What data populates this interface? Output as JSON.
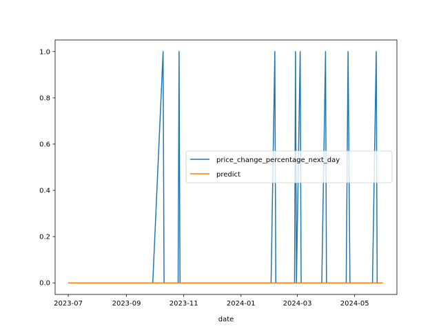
{
  "chart_data": {
    "type": "line",
    "xlabel": "date",
    "ylabel": "",
    "xlim": [
      "2023-06-17",
      "2024-06-15"
    ],
    "ylim": [
      -0.05,
      1.05
    ],
    "grid": false,
    "legend_position": "center-right",
    "x_ticks": [
      "2023-07",
      "2023-09",
      "2023-11",
      "2024-01",
      "2024-03",
      "2024-05"
    ],
    "y_ticks": [
      "0.0",
      "0.2",
      "0.4",
      "0.6",
      "0.8",
      "1.0"
    ],
    "series": [
      {
        "name": "price_change_percentage_next_day",
        "color": "#1f77b4",
        "points": [
          [
            "2023-07-01",
            0
          ],
          [
            "2023-09-29",
            0
          ],
          [
            "2023-10-10",
            1
          ],
          [
            "2023-10-11",
            0
          ],
          [
            "2023-10-26",
            0
          ],
          [
            "2023-10-27",
            1
          ],
          [
            "2023-10-28",
            0
          ],
          [
            "2024-02-02",
            0
          ],
          [
            "2024-02-06",
            1
          ],
          [
            "2024-02-07",
            0
          ],
          [
            "2024-02-27",
            0
          ],
          [
            "2024-02-28",
            1
          ],
          [
            "2024-02-29",
            0
          ],
          [
            "2024-03-04",
            1
          ],
          [
            "2024-03-05",
            0
          ],
          [
            "2024-03-27",
            0
          ],
          [
            "2024-03-31",
            1
          ],
          [
            "2024-04-01",
            0
          ],
          [
            "2024-04-22",
            0
          ],
          [
            "2024-04-24",
            1
          ],
          [
            "2024-04-26",
            0
          ],
          [
            "2024-05-20",
            0
          ],
          [
            "2024-05-24",
            1
          ],
          [
            "2024-05-25",
            0
          ],
          [
            "2024-05-31",
            0
          ]
        ]
      },
      {
        "name": "predict",
        "color": "#ff7f0e",
        "points": [
          [
            "2023-07-01",
            0
          ],
          [
            "2024-05-31",
            0
          ]
        ]
      }
    ]
  }
}
